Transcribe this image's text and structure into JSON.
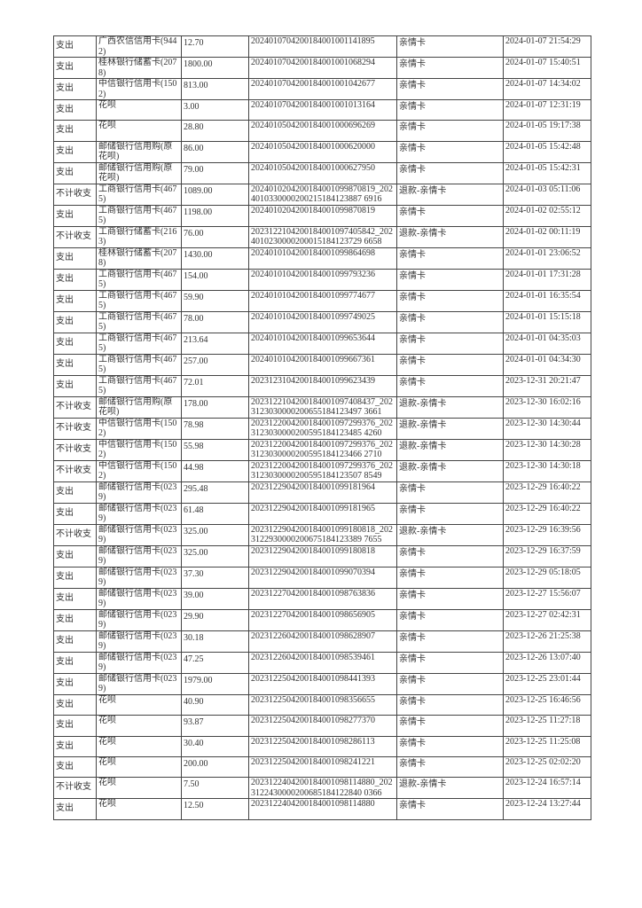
{
  "rows": [
    {
      "type": "支出",
      "account": "广西农信信用卡(9442)",
      "amount": "12.70",
      "order_no": "2024010704200184001001141895",
      "category": "亲情卡",
      "time": "2024-01-07 21:54:29"
    },
    {
      "type": "支出",
      "account": "桂林银行储蓄卡(2078)",
      "amount": "1800.00",
      "order_no": "2024010704200184001001068294",
      "category": "亲情卡",
      "time": "2024-01-07 15:40:51"
    },
    {
      "type": "支出",
      "account": "中信银行信用卡(1502)",
      "amount": "813.00",
      "order_no": "2024010704200184001001042677",
      "category": "亲情卡",
      "time": "2024-01-07 14:34:02"
    },
    {
      "type": "支出",
      "account": "花呗",
      "amount": "3.00",
      "order_no": "2024010704200184001001013164",
      "category": "亲情卡",
      "time": "2024-01-07 12:31:19"
    },
    {
      "type": "支出",
      "account": "花呗",
      "amount": "28.80",
      "order_no": "2024010504200184001000696269",
      "category": "亲情卡",
      "time": "2024-01-05 19:17:38"
    },
    {
      "type": "支出",
      "account": "邮储银行信用购(原花呗)",
      "amount": "86.00",
      "order_no": "2024010504200184001000620000",
      "category": "亲情卡",
      "time": "2024-01-05 15:42:48"
    },
    {
      "type": "支出",
      "account": "邮储银行信用购(原花呗)",
      "amount": "79.00",
      "order_no": "2024010504200184001000627950",
      "category": "亲情卡",
      "time": "2024-01-05 15:42:31"
    },
    {
      "type": "不计收支",
      "account": "工商银行信用卡(4675)",
      "amount": "1089.00",
      "order_no": "2024010204200184001099870819_2024010330000200215184123887 6916",
      "category": "退款-亲情卡",
      "time": "2024-01-03 05:11:06"
    },
    {
      "type": "支出",
      "account": "工商银行信用卡(4675)",
      "amount": "1198.00",
      "order_no": "2024010204200184001099870819",
      "category": "亲情卡",
      "time": "2024-01-02 02:55:12"
    },
    {
      "type": "不计收支",
      "account": "工商银行储蓄卡(2163)",
      "amount": "76.00",
      "order_no": "2023122104200184001097405842_2024010230000200015184123729 6658",
      "category": "退款-亲情卡",
      "time": "2024-01-02 00:11:19"
    },
    {
      "type": "支出",
      "account": "桂林银行储蓄卡(2078)",
      "amount": "1430.00",
      "order_no": "2024010104200184001099864698",
      "category": "亲情卡",
      "time": "2024-01-01 23:06:52"
    },
    {
      "type": "支出",
      "account": "工商银行信用卡(4675)",
      "amount": "154.00",
      "order_no": "2024010104200184001099793236",
      "category": "亲情卡",
      "time": "2024-01-01 17:31:28"
    },
    {
      "type": "支出",
      "account": "工商银行信用卡(4675)",
      "amount": "59.90",
      "order_no": "2024010104200184001099774677",
      "category": "亲情卡",
      "time": "2024-01-01 16:35:54"
    },
    {
      "type": "支出",
      "account": "工商银行信用卡(4675)",
      "amount": "78.00",
      "order_no": "2024010104200184001099749025",
      "category": "亲情卡",
      "time": "2024-01-01 15:15:18"
    },
    {
      "type": "支出",
      "account": "工商银行信用卡(4675)",
      "amount": "213.64",
      "order_no": "2024010104200184001099653644",
      "category": "亲情卡",
      "time": "2024-01-01 04:35:03"
    },
    {
      "type": "支出",
      "account": "工商银行信用卡(4675)",
      "amount": "257.00",
      "order_no": "2024010104200184001099667361",
      "category": "亲情卡",
      "time": "2024-01-01 04:34:30"
    },
    {
      "type": "支出",
      "account": "工商银行信用卡(4675)",
      "amount": "72.01",
      "order_no": "2023123104200184001099623439",
      "category": "亲情卡",
      "time": "2023-12-31 20:21:47"
    },
    {
      "type": "不计收支",
      "account": "邮储银行信用购(原花呗)",
      "amount": "178.00",
      "order_no": "2023122104200184001097408437_2023123030000200655184123497 3661",
      "category": "退款-亲情卡",
      "time": "2023-12-30 16:02:16"
    },
    {
      "type": "不计收支",
      "account": "中信银行信用卡(1502)",
      "amount": "78.98",
      "order_no": "2023122004200184001097299376_2023123030000200595184123485 4260",
      "category": "退款-亲情卡",
      "time": "2023-12-30 14:30:44"
    },
    {
      "type": "不计收支",
      "account": "中信银行信用卡(1502)",
      "amount": "55.98",
      "order_no": "2023122004200184001097299376_2023123030000200595184123466 2710",
      "category": "退款-亲情卡",
      "time": "2023-12-30 14:30:28"
    },
    {
      "type": "不计收支",
      "account": "中信银行信用卡(1502)",
      "amount": "44.98",
      "order_no": "2023122004200184001097299376_2023123030000200595184123507 8549",
      "category": "退款-亲情卡",
      "time": "2023-12-30 14:30:18"
    },
    {
      "type": "支出",
      "account": "邮储银行信用卡(0239)",
      "amount": "295.48",
      "order_no": "2023122904200184001099181964",
      "category": "亲情卡",
      "time": "2023-12-29 16:40:22"
    },
    {
      "type": "支出",
      "account": "邮储银行信用卡(0239)",
      "amount": "61.48",
      "order_no": "2023122904200184001099181965",
      "category": "亲情卡",
      "time": "2023-12-29 16:40:22"
    },
    {
      "type": "不计收支",
      "account": "邮储银行信用卡(0239)",
      "amount": "325.00",
      "order_no": "2023122904200184001099180818_2023122930000200675184123389 7655",
      "category": "退款-亲情卡",
      "time": "2023-12-29 16:39:56"
    },
    {
      "type": "支出",
      "account": "邮储银行信用卡(0239)",
      "amount": "325.00",
      "order_no": "2023122904200184001099180818",
      "category": "亲情卡",
      "time": "2023-12-29 16:37:59"
    },
    {
      "type": "支出",
      "account": "邮储银行信用卡(0239)",
      "amount": "37.30",
      "order_no": "2023122904200184001099070394",
      "category": "亲情卡",
      "time": "2023-12-29 05:18:05"
    },
    {
      "type": "支出",
      "account": "邮储银行信用卡(0239)",
      "amount": "39.00",
      "order_no": "2023122704200184001098763836",
      "category": "亲情卡",
      "time": "2023-12-27 15:56:07"
    },
    {
      "type": "支出",
      "account": "邮储银行信用卡(0239)",
      "amount": "29.90",
      "order_no": "2023122704200184001098656905",
      "category": "亲情卡",
      "time": "2023-12-27 02:42:31"
    },
    {
      "type": "支出",
      "account": "邮储银行信用卡(0239)",
      "amount": "30.18",
      "order_no": "2023122604200184001098628907",
      "category": "亲情卡",
      "time": "2023-12-26 21:25:38"
    },
    {
      "type": "支出",
      "account": "邮储银行信用卡(0239)",
      "amount": "47.25",
      "order_no": "2023122604200184001098539461",
      "category": "亲情卡",
      "time": "2023-12-26 13:07:40"
    },
    {
      "type": "支出",
      "account": "邮储银行信用卡(0239)",
      "amount": "1979.00",
      "order_no": "2023122504200184001098441393",
      "category": "亲情卡",
      "time": "2023-12-25 23:01:44"
    },
    {
      "type": "支出",
      "account": "花呗",
      "amount": "40.90",
      "order_no": "2023122504200184001098356655",
      "category": "亲情卡",
      "time": "2023-12-25 16:46:56"
    },
    {
      "type": "支出",
      "account": "花呗",
      "amount": "93.87",
      "order_no": "2023122504200184001098277370",
      "category": "亲情卡",
      "time": "2023-12-25 11:27:18"
    },
    {
      "type": "支出",
      "account": "花呗",
      "amount": "30.40",
      "order_no": "2023122504200184001098286113",
      "category": "亲情卡",
      "time": "2023-12-25 11:25:08"
    },
    {
      "type": "支出",
      "account": "花呗",
      "amount": "200.00",
      "order_no": "2023122504200184001098241221",
      "category": "亲情卡",
      "time": "2023-12-25 02:02:20"
    },
    {
      "type": "不计收支",
      "account": "花呗",
      "amount": "7.50",
      "order_no": "2023122404200184001098114880_2023122430000200685184122840 0366",
      "category": "退款-亲情卡",
      "time": "2023-12-24 16:57:14"
    },
    {
      "type": "支出",
      "account": "花呗",
      "amount": "12.50",
      "order_no": "2023122404200184001098114880",
      "category": "亲情卡",
      "time": "2023-12-24 13:27:44"
    }
  ]
}
